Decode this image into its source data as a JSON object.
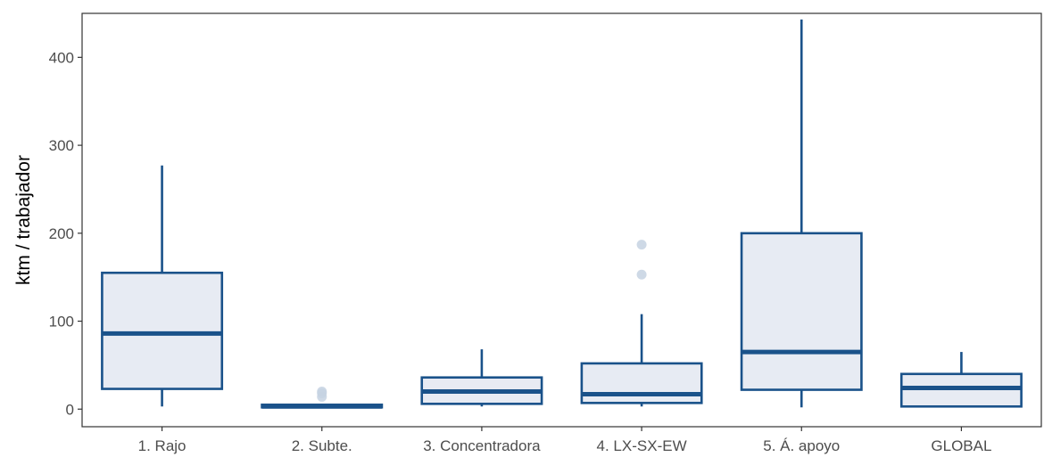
{
  "chart_data": {
    "type": "boxplot",
    "title": "",
    "xlabel": "",
    "ylabel": "ktm / trabajador",
    "ylim": [
      -20,
      450
    ],
    "yticks": [
      0,
      100,
      200,
      300,
      400
    ],
    "grid": false,
    "legend": "none",
    "colors": {
      "stroke": "#1a528a",
      "fill": "#e7ebf3",
      "outlier": "#c5d2e2",
      "axis": "#333333"
    },
    "categories": [
      "1. Rajo",
      "2. Subte.",
      "3. Concentradora",
      "4. LX-SX-EW",
      "5. Á. apoyo",
      "GLOBAL"
    ],
    "boxes": [
      {
        "label": "1. Rajo",
        "min": 3,
        "q1": 23,
        "median": 86,
        "q3": 155,
        "max": 277,
        "outliers": []
      },
      {
        "label": "2. Subte.",
        "min": 1,
        "q1": 2,
        "median": 3,
        "q3": 5,
        "max": 6,
        "outliers": [
          14,
          18,
          20
        ]
      },
      {
        "label": "3. Concentradora",
        "min": 3,
        "q1": 6,
        "median": 20,
        "q3": 36,
        "max": 68,
        "outliers": []
      },
      {
        "label": "4. LX-SX-EW",
        "min": 3,
        "q1": 7,
        "median": 17,
        "q3": 52,
        "max": 108,
        "outliers": [
          153,
          187
        ]
      },
      {
        "label": "5. Á. apoyo",
        "min": 2,
        "q1": 22,
        "median": 65,
        "q3": 200,
        "max": 443,
        "outliers": []
      },
      {
        "label": "GLOBAL",
        "min": 2,
        "q1": 3,
        "median": 24,
        "q3": 40,
        "max": 65,
        "outliers": []
      }
    ]
  }
}
